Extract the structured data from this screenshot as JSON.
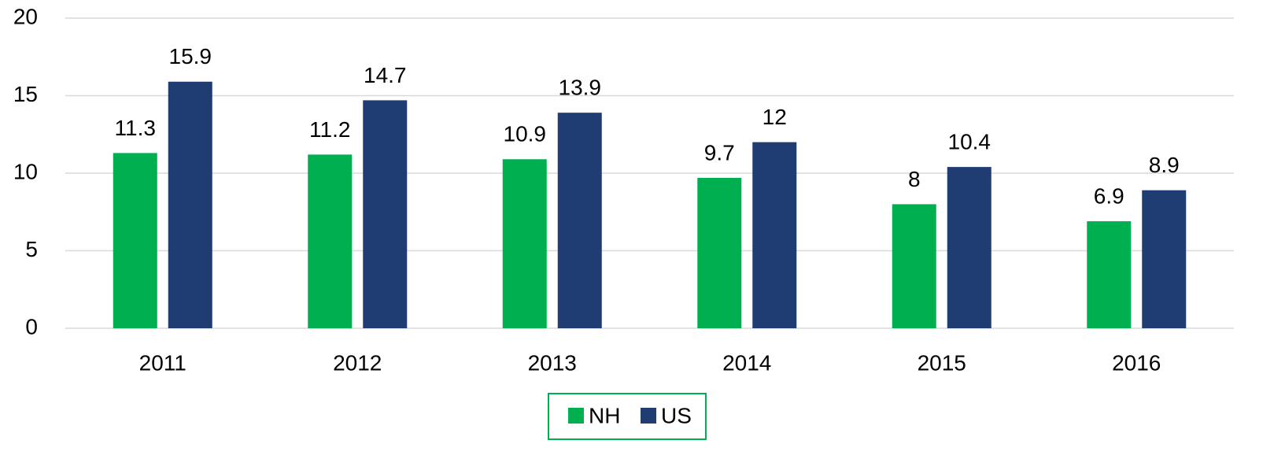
{
  "chart_data": {
    "type": "bar",
    "categories": [
      "2011",
      "2012",
      "2013",
      "2014",
      "2015",
      "2016"
    ],
    "series": [
      {
        "name": "NH",
        "color": "#00b050",
        "values": [
          11.3,
          11.2,
          10.9,
          9.7,
          8,
          6.9
        ]
      },
      {
        "name": "US",
        "color": "#1f3c73",
        "values": [
          15.9,
          14.7,
          13.9,
          12,
          10.4,
          8.9
        ]
      }
    ],
    "ylim": [
      0,
      20
    ],
    "yticks": [
      0,
      5,
      10,
      15,
      20
    ],
    "grid": true,
    "legend": "bottom"
  }
}
